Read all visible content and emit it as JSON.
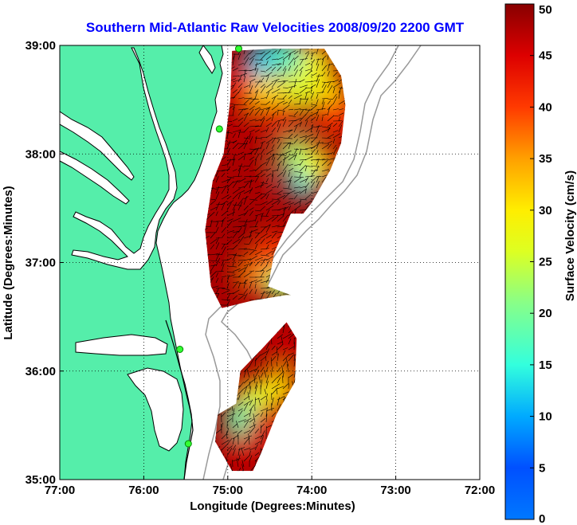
{
  "title": "Southern Mid-Atlantic Raw Velocities 2008/09/20 2200 GMT",
  "map": {
    "xlabel": "Longitude (Degrees:Minutes)",
    "ylabel": "Latitude (Degrees:Minutes)",
    "xlim": [
      -77,
      -72
    ],
    "ylim": [
      35,
      39
    ],
    "xticks": [
      {
        "value": -77,
        "label": "77:00"
      },
      {
        "value": -76,
        "label": "76:00"
      },
      {
        "value": -75,
        "label": "75:00"
      },
      {
        "value": -74,
        "label": "74:00"
      },
      {
        "value": -73,
        "label": "73:00"
      },
      {
        "value": -72,
        "label": "72:00"
      }
    ],
    "yticks": [
      {
        "value": 35,
        "label": "35:00"
      },
      {
        "value": 36,
        "label": "36:00"
      },
      {
        "value": 37,
        "label": "37:00"
      },
      {
        "value": 38,
        "label": "38:00"
      },
      {
        "value": 39,
        "label": "39:00"
      }
    ],
    "grid": "dotted",
    "land_color": "#55eeaa",
    "stations": [
      {
        "lon": -74.87,
        "lat": 38.97
      },
      {
        "lon": -75.1,
        "lat": 38.23
      },
      {
        "lon": -75.57,
        "lat": 36.2
      },
      {
        "lon": -75.47,
        "lat": 35.33
      }
    ]
  },
  "colorbar": {
    "label": "Surface Velocity (cm/s)",
    "min": 0,
    "max": 50,
    "ticks": [
      {
        "value": 0,
        "label": "0"
      },
      {
        "value": 5,
        "label": "5"
      },
      {
        "value": 10,
        "label": "10"
      },
      {
        "value": 15,
        "label": "15"
      },
      {
        "value": 20,
        "label": "20"
      },
      {
        "value": 25,
        "label": "25"
      },
      {
        "value": 30,
        "label": "30"
      },
      {
        "value": 35,
        "label": "35"
      },
      {
        "value": 40,
        "label": "40"
      },
      {
        "value": 45,
        "label": "45"
      },
      {
        "value": 50,
        "label": "50"
      }
    ],
    "colormap": "jet"
  },
  "field_regions": [
    {
      "name": "northern-field",
      "outline": [
        [
          -74.95,
          38.95
        ],
        [
          -74.45,
          38.97
        ],
        [
          -73.85,
          38.97
        ],
        [
          -73.65,
          38.72
        ],
        [
          -73.6,
          38.45
        ],
        [
          -73.65,
          38.1
        ],
        [
          -73.78,
          37.85
        ],
        [
          -74.0,
          37.55
        ],
        [
          -74.1,
          37.45
        ],
        [
          -74.25,
          37.45
        ],
        [
          -74.45,
          37.08
        ],
        [
          -74.52,
          36.78
        ],
        [
          -74.25,
          36.7
        ],
        [
          -74.3,
          36.7
        ],
        [
          -74.7,
          36.65
        ],
        [
          -75.07,
          36.58
        ],
        [
          -75.2,
          36.78
        ],
        [
          -75.27,
          37.3
        ],
        [
          -75.18,
          37.75
        ],
        [
          -75.05,
          38.0
        ],
        [
          -74.97,
          38.5
        ],
        [
          -74.95,
          38.95
        ]
      ],
      "cells": [
        {
          "lon": -74.6,
          "lat": 38.85,
          "speed": 12
        },
        {
          "lon": -74.3,
          "lat": 38.9,
          "speed": 16
        },
        {
          "lon": -73.95,
          "lat": 38.85,
          "speed": 28
        },
        {
          "lon": -74.8,
          "lat": 38.6,
          "speed": 42
        },
        {
          "lon": -74.5,
          "lat": 38.55,
          "speed": 30
        },
        {
          "lon": -74.15,
          "lat": 38.6,
          "speed": 26
        },
        {
          "lon": -73.8,
          "lat": 38.55,
          "speed": 30
        },
        {
          "lon": -74.4,
          "lat": 38.35,
          "speed": 44
        },
        {
          "lon": -73.95,
          "lat": 38.35,
          "speed": 48
        },
        {
          "lon": -73.7,
          "lat": 38.35,
          "speed": 40
        },
        {
          "lon": -74.2,
          "lat": 38.0,
          "speed": 22
        },
        {
          "lon": -74.1,
          "lat": 37.75,
          "speed": 14
        },
        {
          "lon": -73.95,
          "lat": 37.9,
          "speed": 28
        },
        {
          "lon": -74.85,
          "lat": 38.25,
          "speed": 47
        },
        {
          "lon": -74.7,
          "lat": 37.8,
          "speed": 48
        },
        {
          "lon": -74.8,
          "lat": 37.3,
          "speed": 49
        },
        {
          "lon": -74.9,
          "lat": 36.9,
          "speed": 48
        },
        {
          "lon": -74.6,
          "lat": 36.9,
          "speed": 36
        },
        {
          "lon": -74.35,
          "lat": 36.8,
          "speed": 22
        },
        {
          "lon": -74.45,
          "lat": 37.1,
          "speed": 40
        }
      ]
    },
    {
      "name": "southern-field",
      "outline": [
        [
          -74.3,
          36.45
        ],
        [
          -74.18,
          36.3
        ],
        [
          -74.2,
          35.9
        ],
        [
          -74.42,
          35.6
        ],
        [
          -74.6,
          35.25
        ],
        [
          -74.7,
          35.08
        ],
        [
          -74.95,
          35.08
        ],
        [
          -75.15,
          35.35
        ],
        [
          -75.12,
          35.6
        ],
        [
          -74.9,
          35.7
        ],
        [
          -74.85,
          36.0
        ],
        [
          -74.6,
          36.2
        ],
        [
          -74.3,
          36.45
        ]
      ],
      "cells": [
        {
          "lon": -74.3,
          "lat": 36.2,
          "speed": 46
        },
        {
          "lon": -74.4,
          "lat": 35.85,
          "speed": 30
        },
        {
          "lon": -74.7,
          "lat": 35.75,
          "speed": 26
        },
        {
          "lon": -74.85,
          "lat": 35.55,
          "speed": 18
        },
        {
          "lon": -74.8,
          "lat": 35.25,
          "speed": 46
        },
        {
          "lon": -74.55,
          "lat": 35.5,
          "speed": 45
        }
      ]
    }
  ]
}
